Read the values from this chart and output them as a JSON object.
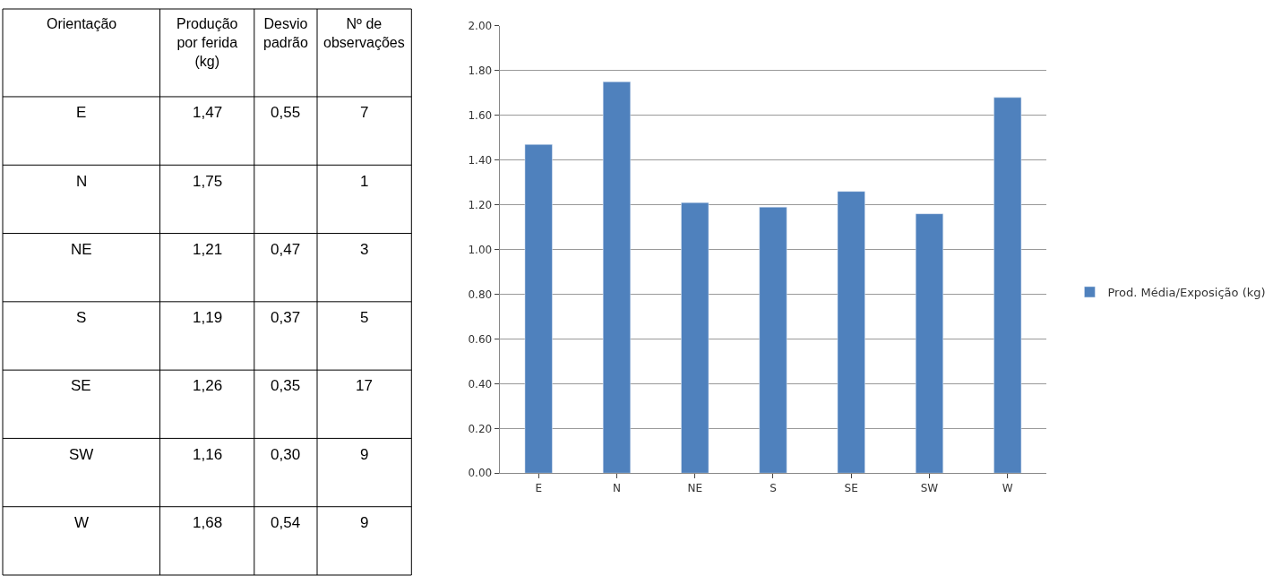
{
  "chart_data": [
    {
      "type": "other",
      "annotations": [
        "Orientação",
        "Produção por ferida (kg)",
        "Desvio padrão",
        "Nº de observações",
        "E",
        "1,47",
        "0,55",
        "7",
        "N",
        "1,75",
        null,
        "1",
        "NE",
        "1,21",
        "0,47",
        "3",
        "S",
        "1,19",
        "0,37",
        "5",
        "SE",
        "1,26",
        "0,35",
        "17",
        "SW",
        "1,16",
        "0,30",
        "9",
        "W",
        "1,68",
        "0,54",
        "9"
      ]
    },
    {
      "type": "bar",
      "categories": [
        "E",
        "N",
        "NE",
        "S",
        "SE",
        "SW",
        "W"
      ],
      "series": [
        {
          "name": "Prod. Média/Exposição (kg)",
          "color": "#4f81bd",
          "values": [
            1.47,
            1.75,
            1.21,
            1.19,
            1.26,
            1.16,
            1.68
          ]
        }
      ],
      "ylim": [
        0,
        2
      ],
      "yticks": [
        {
          "value": 0,
          "label": "0.00"
        },
        {
          "value": 0.2,
          "label": "0.20"
        },
        {
          "value": 0.4,
          "label": "0.40"
        },
        {
          "value": 0.6,
          "label": "0.60"
        },
        {
          "value": 0.8,
          "label": "0.80"
        },
        {
          "value": 1,
          "label": "1.00"
        },
        {
          "value": 1.2,
          "label": "1.20"
        },
        {
          "value": 1.4,
          "label": "1.40"
        },
        {
          "value": 1.6,
          "label": "1.60"
        },
        {
          "value": 1.8,
          "label": "1.80"
        },
        {
          "value": 2,
          "label": "2.00"
        }
      ],
      "grid": "y",
      "legend": "right"
    }
  ]
}
